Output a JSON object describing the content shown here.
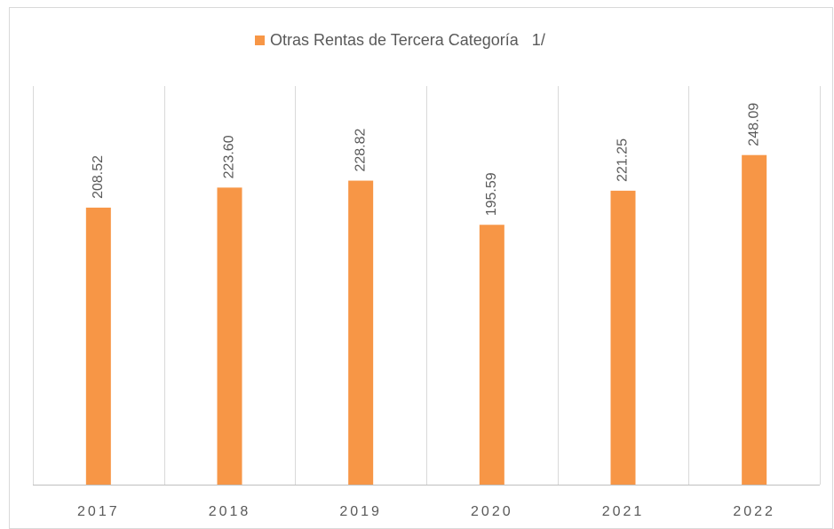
{
  "chart_data": {
    "type": "bar",
    "categories": [
      "2017",
      "2018",
      "2019",
      "2020",
      "2021",
      "2022"
    ],
    "series": [
      {
        "name": "Otras Rentas de Tercera Categoría   1/",
        "color": "#f79646",
        "values": [
          208.52,
          223.6,
          228.82,
          195.59,
          221.25,
          248.09
        ],
        "value_labels": [
          "208.52",
          "223.60",
          "228.82",
          "195.59",
          "221.25",
          "248.09"
        ]
      }
    ],
    "ylim": [
      0,
      300
    ],
    "legend": "top"
  }
}
